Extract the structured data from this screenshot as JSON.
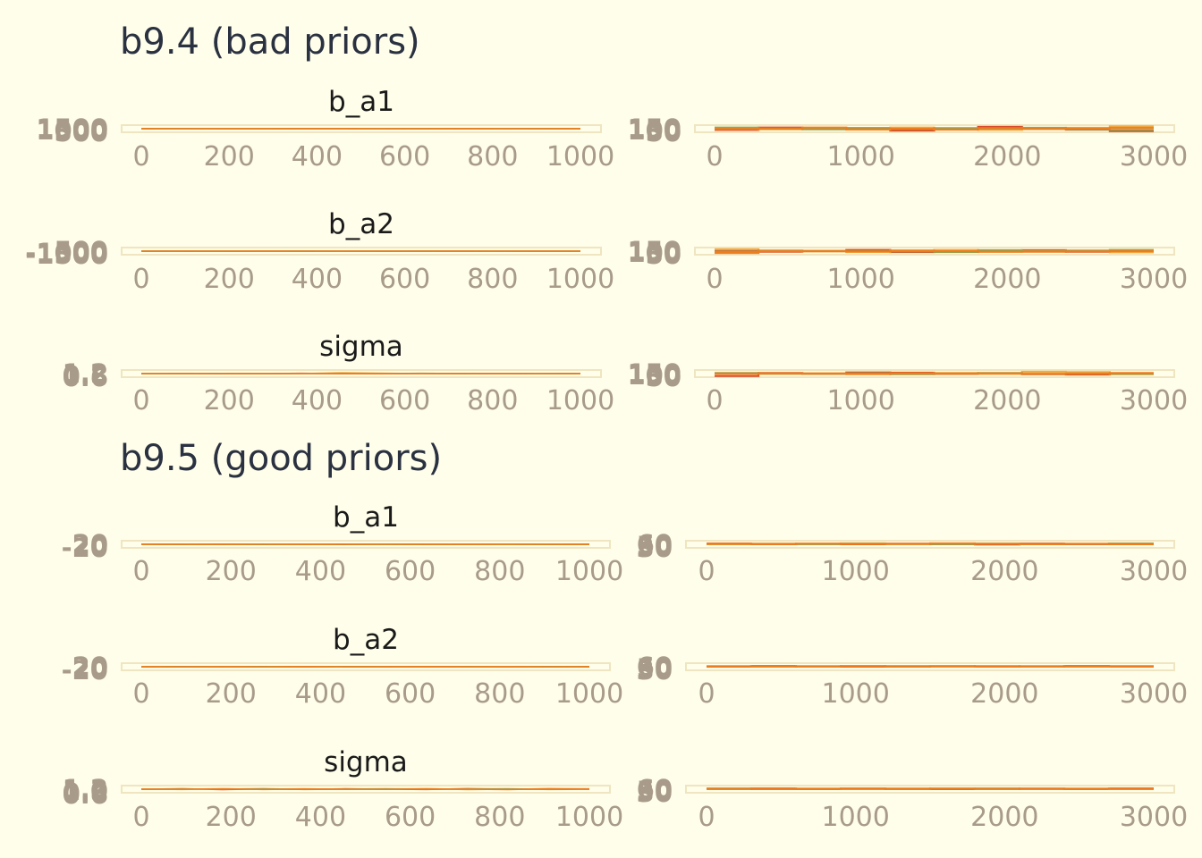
{
  "colors": {
    "background": "#FFFEEA",
    "chains": [
      "#D8401F",
      "#F4A63B",
      "#8FA14F",
      "#F07B1A"
    ],
    "frame": "#EFE5C0",
    "tick": "#A89B8A"
  },
  "sections": [
    {
      "title": "b9.4 (bad priors)"
    },
    {
      "title": "b9.5 (good priors)"
    }
  ],
  "chart_data": [
    {
      "type": "line",
      "section": "b9.4 (bad priors)",
      "panel": "trace",
      "title": "b_a1",
      "x_range": [
        0,
        1000
      ],
      "x_ticks": [
        "0",
        "200",
        "400",
        "600",
        "800",
        "1000"
      ],
      "y_ticks": [
        "1500",
        "1000",
        "500"
      ],
      "ylim": [
        400,
        1600
      ],
      "series": [
        {
          "values_approx": [
            1010,
            1020,
            990,
            985,
            1000,
            1010,
            1000,
            995,
            1005,
            1000,
            990,
            1000
          ]
        },
        {
          "values_approx": [
            1000,
            990,
            1010,
            1020,
            1000,
            990,
            1005,
            1010,
            995,
            985,
            1000,
            1005
          ]
        },
        {
          "values_approx": [
            995,
            1005,
            1000,
            990,
            1010,
            1000,
            995,
            1015,
            1000,
            1020,
            1010,
            995
          ]
        },
        {
          "values_approx": [
            1005,
            1000,
            985,
            995,
            1005,
            1015,
            1000,
            990,
            1010,
            995,
            1000,
            1010
          ]
        }
      ]
    },
    {
      "type": "bar",
      "section": "b9.4 (bad priors)",
      "panel": "rank",
      "title": "",
      "x_range": [
        0,
        3000
      ],
      "x_ticks": [
        "0",
        "1000",
        "2000",
        "3000"
      ],
      "y_ticks": [
        "150",
        "100",
        "50"
      ],
      "ylim": [
        40,
        160
      ],
      "series": [
        {
          "values_approx": [
            80,
            120,
            95,
            110,
            70,
            90,
            130,
            100,
            85,
            60
          ]
        },
        {
          "values_approx": [
            100,
            90,
            110,
            85,
            120,
            105,
            80,
            95,
            115,
            140
          ]
        },
        {
          "values_approx": [
            120,
            100,
            90,
            105,
            95,
            110,
            100,
            115,
            90,
            80
          ]
        },
        {
          "values_approx": [
            95,
            105,
            120,
            90,
            100,
            85,
            110,
            95,
            105,
            115
          ]
        }
      ]
    },
    {
      "type": "line",
      "section": "b9.4 (bad priors)",
      "panel": "trace",
      "title": "b_a2",
      "x_range": [
        0,
        1000
      ],
      "x_ticks": [
        "0",
        "200",
        "400",
        "600",
        "800",
        "1000"
      ],
      "y_ticks": [
        "500",
        "-1000",
        "-1500"
      ],
      "ylim": [
        -1700,
        700
      ],
      "series": [
        {
          "values_approx": [
            -500,
            -480,
            -520,
            -510,
            -490,
            -500,
            -505,
            -495,
            -510,
            -500,
            -485,
            -500
          ]
        },
        {
          "values_approx": [
            -510,
            -500,
            -490,
            -520,
            -505,
            -480,
            -495,
            -515,
            -500,
            -505,
            -510,
            -495
          ]
        },
        {
          "values_approx": [
            -495,
            -505,
            -515,
            -500,
            -490,
            -510,
            -500,
            -480,
            -495,
            -520,
            -500,
            -505
          ]
        },
        {
          "values_approx": [
            -505,
            -515,
            -500,
            -490,
            -510,
            -500,
            -520,
            -505,
            -490,
            -500,
            -515,
            -500
          ]
        }
      ]
    },
    {
      "type": "bar",
      "section": "b9.4 (bad priors)",
      "panel": "rank",
      "title": "",
      "x_range": [
        0,
        3000
      ],
      "x_ticks": [
        "0",
        "1000",
        "2000",
        "3000"
      ],
      "y_ticks": [
        "150",
        "100",
        "50"
      ],
      "ylim": [
        40,
        160
      ],
      "series": [
        {
          "values_approx": [
            110,
            90,
            100,
            120,
            85,
            95,
            105,
            115,
            90,
            100
          ]
        },
        {
          "values_approx": [
            130,
            100,
            95,
            85,
            110,
            120,
            90,
            100,
            105,
            80
          ]
        },
        {
          "values_approx": [
            90,
            110,
            105,
            100,
            95,
            85,
            115,
            95,
            110,
            120
          ]
        },
        {
          "values_approx": [
            70,
            100,
            100,
            95,
            110,
            100,
            90,
            90,
            95,
            100
          ]
        }
      ]
    },
    {
      "type": "line",
      "section": "b9.4 (bad priors)",
      "panel": "trace",
      "title": "sigma",
      "x_range": [
        0,
        1000
      ],
      "x_ticks": [
        "0",
        "200",
        "400",
        "600",
        "800",
        "1000"
      ],
      "y_ticks": [
        "1.2",
        "0.8",
        "0.6"
      ],
      "ylim": [
        0.5,
        1.3
      ],
      "series": [
        {
          "values_approx": [
            0.9,
            0.92,
            0.88,
            0.9,
            0.93,
            0.89,
            0.91,
            0.9,
            0.88,
            0.92,
            0.9,
            0.91
          ]
        },
        {
          "values_approx": [
            0.91,
            0.89,
            0.9,
            0.92,
            0.9,
            1.0,
            0.95,
            0.9,
            0.89,
            0.91,
            0.9,
            0.88
          ]
        },
        {
          "values_approx": [
            0.89,
            0.9,
            0.91,
            0.88,
            0.9,
            0.92,
            0.9,
            0.93,
            0.91,
            0.9,
            0.89,
            0.9
          ]
        },
        {
          "values_approx": [
            0.9,
            0.91,
            0.9,
            0.89,
            0.91,
            0.9,
            0.88,
            0.9,
            0.92,
            0.89,
            0.91,
            0.9
          ]
        }
      ]
    },
    {
      "type": "bar",
      "section": "b9.4 (bad priors)",
      "panel": "rank",
      "title": "",
      "x_range": [
        0,
        3000
      ],
      "x_ticks": [
        "0",
        "1000",
        "2000",
        "3000"
      ],
      "y_ticks": [
        "150",
        "100",
        "50"
      ],
      "ylim": [
        40,
        160
      ],
      "series": [
        {
          "values_approx": [
            60,
            110,
            100,
            120,
            115,
            95,
            100,
            90,
            85,
            105
          ]
        },
        {
          "values_approx": [
            100,
            95,
            105,
            90,
            100,
            110,
            95,
            130,
            125,
            90
          ]
        },
        {
          "values_approx": [
            110,
            100,
            95,
            105,
            90,
            100,
            110,
            95,
            100,
            95
          ]
        },
        {
          "values_approx": [
            100,
            105,
            100,
            95,
            105,
            100,
            105,
            95,
            100,
            110
          ]
        }
      ]
    },
    {
      "type": "line",
      "section": "b9.5 (good priors)",
      "panel": "trace",
      "title": "b_a1",
      "x_range": [
        0,
        1000
      ],
      "x_ticks": [
        "0",
        "200",
        "400",
        "600",
        "800",
        "1000"
      ],
      "y_ticks": [
        "20",
        "0",
        "-20"
      ],
      "ylim": [
        -25,
        25
      ],
      "series": [
        {
          "values_approx": [
            0.5,
            -1,
            1.5,
            -0.5,
            0.8,
            -1.2,
            0.3,
            1.0,
            -0.7,
            0.4,
            -0.2,
            0.9
          ]
        },
        {
          "values_approx": [
            -0.6,
            0.9,
            -1.1,
            0.7,
            -0.3,
            1.2,
            -0.8,
            0.2,
            1.1,
            -0.9,
            0.6,
            -0.4
          ]
        },
        {
          "values_approx": [
            1.1,
            -0.4,
            0.6,
            -1.0,
            0.2,
            0.7,
            -0.5,
            -1.1,
            0.8,
            0.3,
            -0.9,
            0.5
          ]
        },
        {
          "values_approx": [
            -0.2,
            0.6,
            -0.9,
            1.0,
            -1.2,
            0.4,
            0.9,
            -0.3,
            -0.6,
            1.2,
            0.1,
            -0.8
          ]
        }
      ]
    },
    {
      "type": "bar",
      "section": "b9.5 (good priors)",
      "panel": "rank",
      "title": "",
      "x_range": [
        0,
        3000
      ],
      "x_ticks": [
        "0",
        "1000",
        "2000",
        "3000"
      ],
      "y_ticks": [
        "60",
        "50",
        "30"
      ],
      "ylim": [
        25,
        70
      ],
      "series": [
        {
          "values_approx": [
            52,
            49,
            50,
            48,
            51,
            50,
            47,
            52,
            49,
            51
          ]
        },
        {
          "values_approx": [
            48,
            51,
            50,
            53,
            49,
            50,
            52,
            48,
            51,
            49
          ]
        },
        {
          "values_approx": [
            50,
            50,
            49,
            51,
            50,
            48,
            51,
            50,
            50,
            52
          ]
        },
        {
          "values_approx": [
            51,
            49,
            52,
            49,
            50,
            53,
            50,
            49,
            50,
            48
          ]
        }
      ]
    },
    {
      "type": "line",
      "section": "b9.5 (good priors)",
      "panel": "trace",
      "title": "b_a2",
      "x_range": [
        0,
        1000
      ],
      "x_ticks": [
        "0",
        "200",
        "400",
        "600",
        "800",
        "1000"
      ],
      "y_ticks": [
        "20",
        "0",
        "-20"
      ],
      "ylim": [
        -25,
        25
      ],
      "series": [
        {
          "values_approx": [
            -0.4,
            1.0,
            -0.8,
            0.6,
            -1.1,
            0.3,
            0.9,
            -0.5,
            0.2,
            -0.9,
            1.1,
            -0.2
          ]
        },
        {
          "values_approx": [
            0.7,
            -0.6,
            1.2,
            -0.3,
            0.5,
            -1.0,
            0.1,
            0.8,
            -1.2,
            0.4,
            -0.5,
            0.9
          ]
        },
        {
          "values_approx": [
            -1.0,
            0.4,
            -0.2,
            0.9,
            -0.7,
            1.1,
            -0.4,
            0.3,
            0.6,
            -0.8,
            0.2,
            1.0
          ]
        },
        {
          "values_approx": [
            0.3,
            -0.9,
            0.5,
            -1.2,
            1.0,
            -0.1,
            -0.6,
            1.2,
            -0.3,
            0.7,
            -1.0,
            0.4
          ]
        }
      ]
    },
    {
      "type": "bar",
      "section": "b9.5 (good priors)",
      "panel": "rank",
      "title": "",
      "x_range": [
        0,
        3000
      ],
      "x_ticks": [
        "0",
        "1000",
        "2000",
        "3000"
      ],
      "y_ticks": [
        "60",
        "50",
        "30"
      ],
      "ylim": [
        25,
        70
      ],
      "series": [
        {
          "values_approx": [
            49,
            52,
            50,
            48,
            50,
            51,
            49,
            50,
            52,
            49
          ]
        },
        {
          "values_approx": [
            51,
            48,
            51,
            50,
            52,
            49,
            50,
            51,
            48,
            50
          ]
        },
        {
          "values_approx": [
            50,
            50,
            49,
            52,
            48,
            50,
            51,
            49,
            50,
            51
          ]
        },
        {
          "values_approx": [
            50,
            50,
            50,
            50,
            50,
            50,
            50,
            50,
            50,
            50
          ]
        }
      ]
    },
    {
      "type": "line",
      "section": "b9.5 (good priors)",
      "panel": "trace",
      "title": "sigma",
      "x_range": [
        0,
        1000
      ],
      "x_ticks": [
        "0",
        "200",
        "400",
        "600",
        "800",
        "1000"
      ],
      "y_ticks": [
        "1.2",
        "1.0",
        "0.8",
        "0.6"
      ],
      "ylim": [
        0.5,
        1.3
      ],
      "series": [
        {
          "values_approx": [
            0.9,
            0.95,
            0.86,
            0.92,
            0.88,
            0.94,
            0.9,
            0.87,
            0.96,
            0.89,
            0.91,
            0.93
          ]
        },
        {
          "values_approx": [
            0.92,
            0.87,
            0.93,
            0.89,
            0.95,
            0.88,
            0.91,
            0.96,
            0.86,
            0.9,
            0.94,
            0.88
          ]
        },
        {
          "values_approx": [
            0.88,
            0.93,
            0.9,
            0.96,
            0.87,
            0.91,
            0.94,
            0.89,
            0.92,
            0.95,
            0.87,
            0.9
          ]
        },
        {
          "values_approx": [
            0.91,
            0.89,
            0.95,
            0.87,
            0.92,
            0.9,
            0.88,
            0.93,
            0.9,
            0.86,
            0.96,
            0.92
          ]
        }
      ]
    },
    {
      "type": "bar",
      "section": "b9.5 (good priors)",
      "panel": "rank",
      "title": "",
      "x_range": [
        0,
        3000
      ],
      "x_ticks": [
        "0",
        "1000",
        "2000",
        "3000"
      ],
      "y_ticks": [
        "60",
        "50",
        "30"
      ],
      "ylim": [
        25,
        70
      ],
      "series": [
        {
          "values_approx": [
            50,
            52,
            49,
            51,
            50,
            48,
            50,
            51,
            49,
            52
          ]
        },
        {
          "values_approx": [
            49,
            50,
            51,
            48,
            52,
            50,
            49,
            50,
            51,
            48
          ]
        },
        {
          "values_approx": [
            52,
            48,
            50,
            50,
            49,
            51,
            52,
            49,
            50,
            50
          ]
        },
        {
          "values_approx": [
            49,
            50,
            50,
            51,
            49,
            51,
            49,
            50,
            50,
            50
          ]
        }
      ]
    }
  ]
}
